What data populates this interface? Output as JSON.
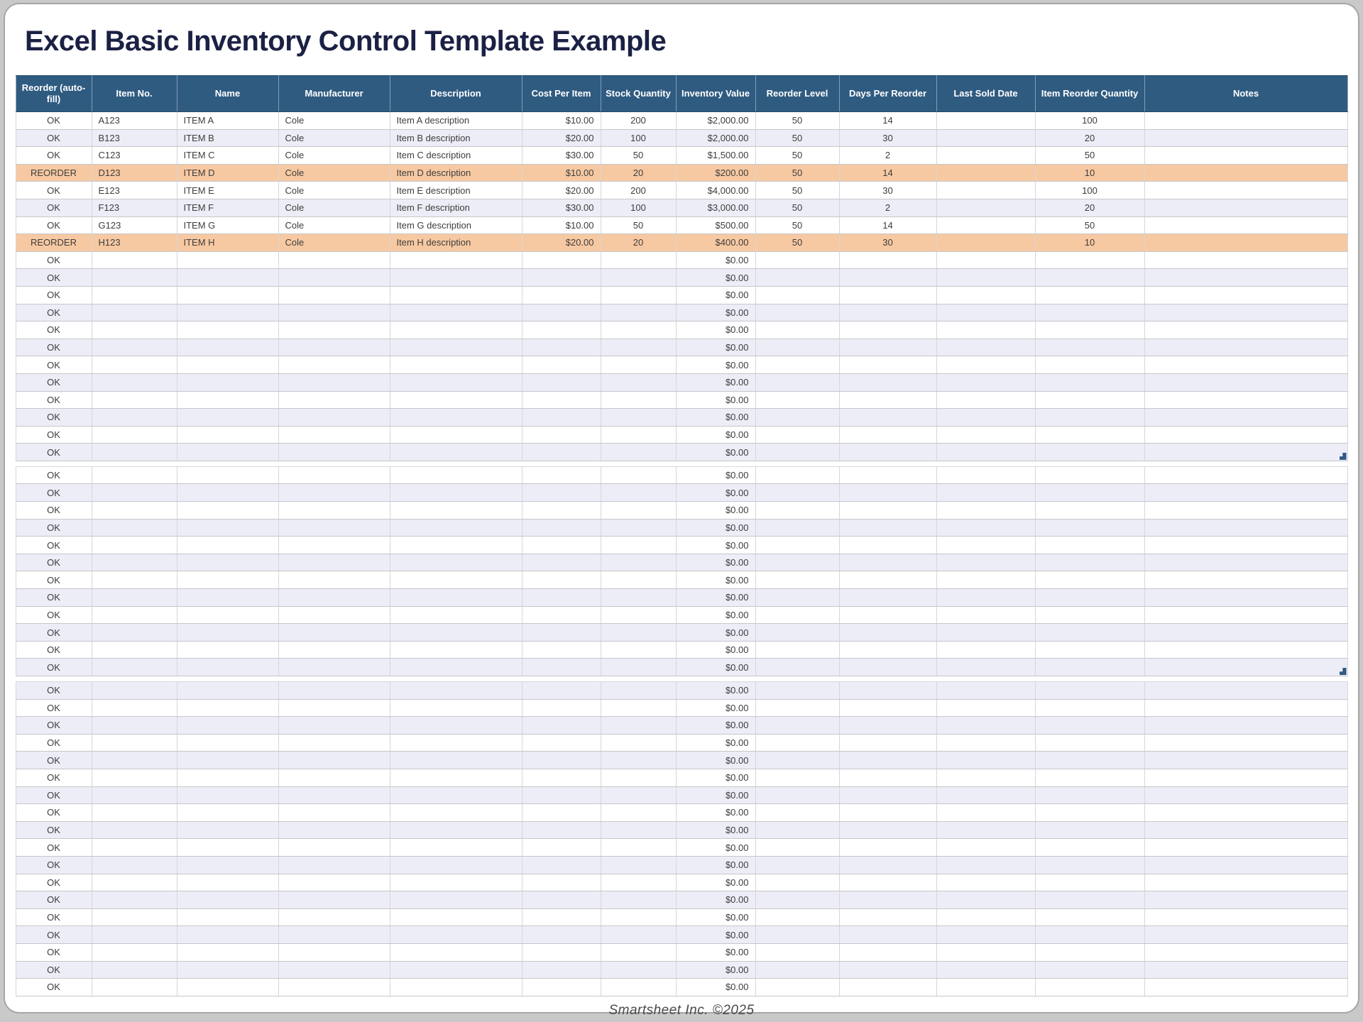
{
  "page": {
    "title": "Excel Basic Inventory Control Template Example",
    "footer": "Smartsheet Inc. ©2025"
  },
  "table": {
    "columns": [
      "Reorder (auto-fill)",
      "Item No.",
      "Name",
      "Manufacturer",
      "Description",
      "Cost Per Item",
      "Stock Quantity",
      "Inventory Value",
      "Reorder Level",
      "Days Per Reorder",
      "Last Sold Date",
      "Item Reorder Quantity",
      "Notes"
    ],
    "items": [
      {
        "status": "OK",
        "item_no": "A123",
        "name": "ITEM A",
        "manufacturer": "Cole",
        "description": "Item A description",
        "cost_per_item": "$10.00",
        "stock_quantity": "200",
        "inventory_value": "$2,000.00",
        "reorder_level": "50",
        "days_per_reorder": "14",
        "last_sold_date": "",
        "item_reorder_quantity": "100",
        "notes": "",
        "highlight": false
      },
      {
        "status": "OK",
        "item_no": "B123",
        "name": "ITEM B",
        "manufacturer": "Cole",
        "description": "Item B description",
        "cost_per_item": "$20.00",
        "stock_quantity": "100",
        "inventory_value": "$2,000.00",
        "reorder_level": "50",
        "days_per_reorder": "30",
        "last_sold_date": "",
        "item_reorder_quantity": "20",
        "notes": "",
        "highlight": false
      },
      {
        "status": "OK",
        "item_no": "C123",
        "name": "ITEM C",
        "manufacturer": "Cole",
        "description": "Item C description",
        "cost_per_item": "$30.00",
        "stock_quantity": "50",
        "inventory_value": "$1,500.00",
        "reorder_level": "50",
        "days_per_reorder": "2",
        "last_sold_date": "",
        "item_reorder_quantity": "50",
        "notes": "",
        "highlight": false
      },
      {
        "status": "REORDER",
        "item_no": "D123",
        "name": "ITEM D",
        "manufacturer": "Cole",
        "description": "Item D description",
        "cost_per_item": "$10.00",
        "stock_quantity": "20",
        "inventory_value": "$200.00",
        "reorder_level": "50",
        "days_per_reorder": "14",
        "last_sold_date": "",
        "item_reorder_quantity": "10",
        "notes": "",
        "highlight": true
      },
      {
        "status": "OK",
        "item_no": "E123",
        "name": "ITEM E",
        "manufacturer": "Cole",
        "description": "Item E description",
        "cost_per_item": "$20.00",
        "stock_quantity": "200",
        "inventory_value": "$4,000.00",
        "reorder_level": "50",
        "days_per_reorder": "30",
        "last_sold_date": "",
        "item_reorder_quantity": "100",
        "notes": "",
        "highlight": false
      },
      {
        "status": "OK",
        "item_no": "F123",
        "name": "ITEM F",
        "manufacturer": "Cole",
        "description": "Item F description",
        "cost_per_item": "$30.00",
        "stock_quantity": "100",
        "inventory_value": "$3,000.00",
        "reorder_level": "50",
        "days_per_reorder": "2",
        "last_sold_date": "",
        "item_reorder_quantity": "20",
        "notes": "",
        "highlight": false
      },
      {
        "status": "OK",
        "item_no": "G123",
        "name": "ITEM G",
        "manufacturer": "Cole",
        "description": "Item G description",
        "cost_per_item": "$10.00",
        "stock_quantity": "50",
        "inventory_value": "$500.00",
        "reorder_level": "50",
        "days_per_reorder": "14",
        "last_sold_date": "",
        "item_reorder_quantity": "50",
        "notes": "",
        "highlight": false
      },
      {
        "status": "REORDER",
        "item_no": "H123",
        "name": "ITEM H",
        "manufacturer": "Cole",
        "description": "Item H description",
        "cost_per_item": "$20.00",
        "stock_quantity": "20",
        "inventory_value": "$400.00",
        "reorder_level": "50",
        "days_per_reorder": "30",
        "last_sold_date": "",
        "item_reorder_quantity": "10",
        "notes": "",
        "highlight": true
      }
    ],
    "empty_row": {
      "status": "OK",
      "inventory_value": "$0.00"
    },
    "empty_sections": [
      12,
      12,
      18
    ]
  },
  "colors": {
    "header_bg": "#2F5B81",
    "reorder_highlight": "#F7C9A2",
    "row_stripe": "#EDEDF7",
    "title_text": "#1B2144"
  }
}
